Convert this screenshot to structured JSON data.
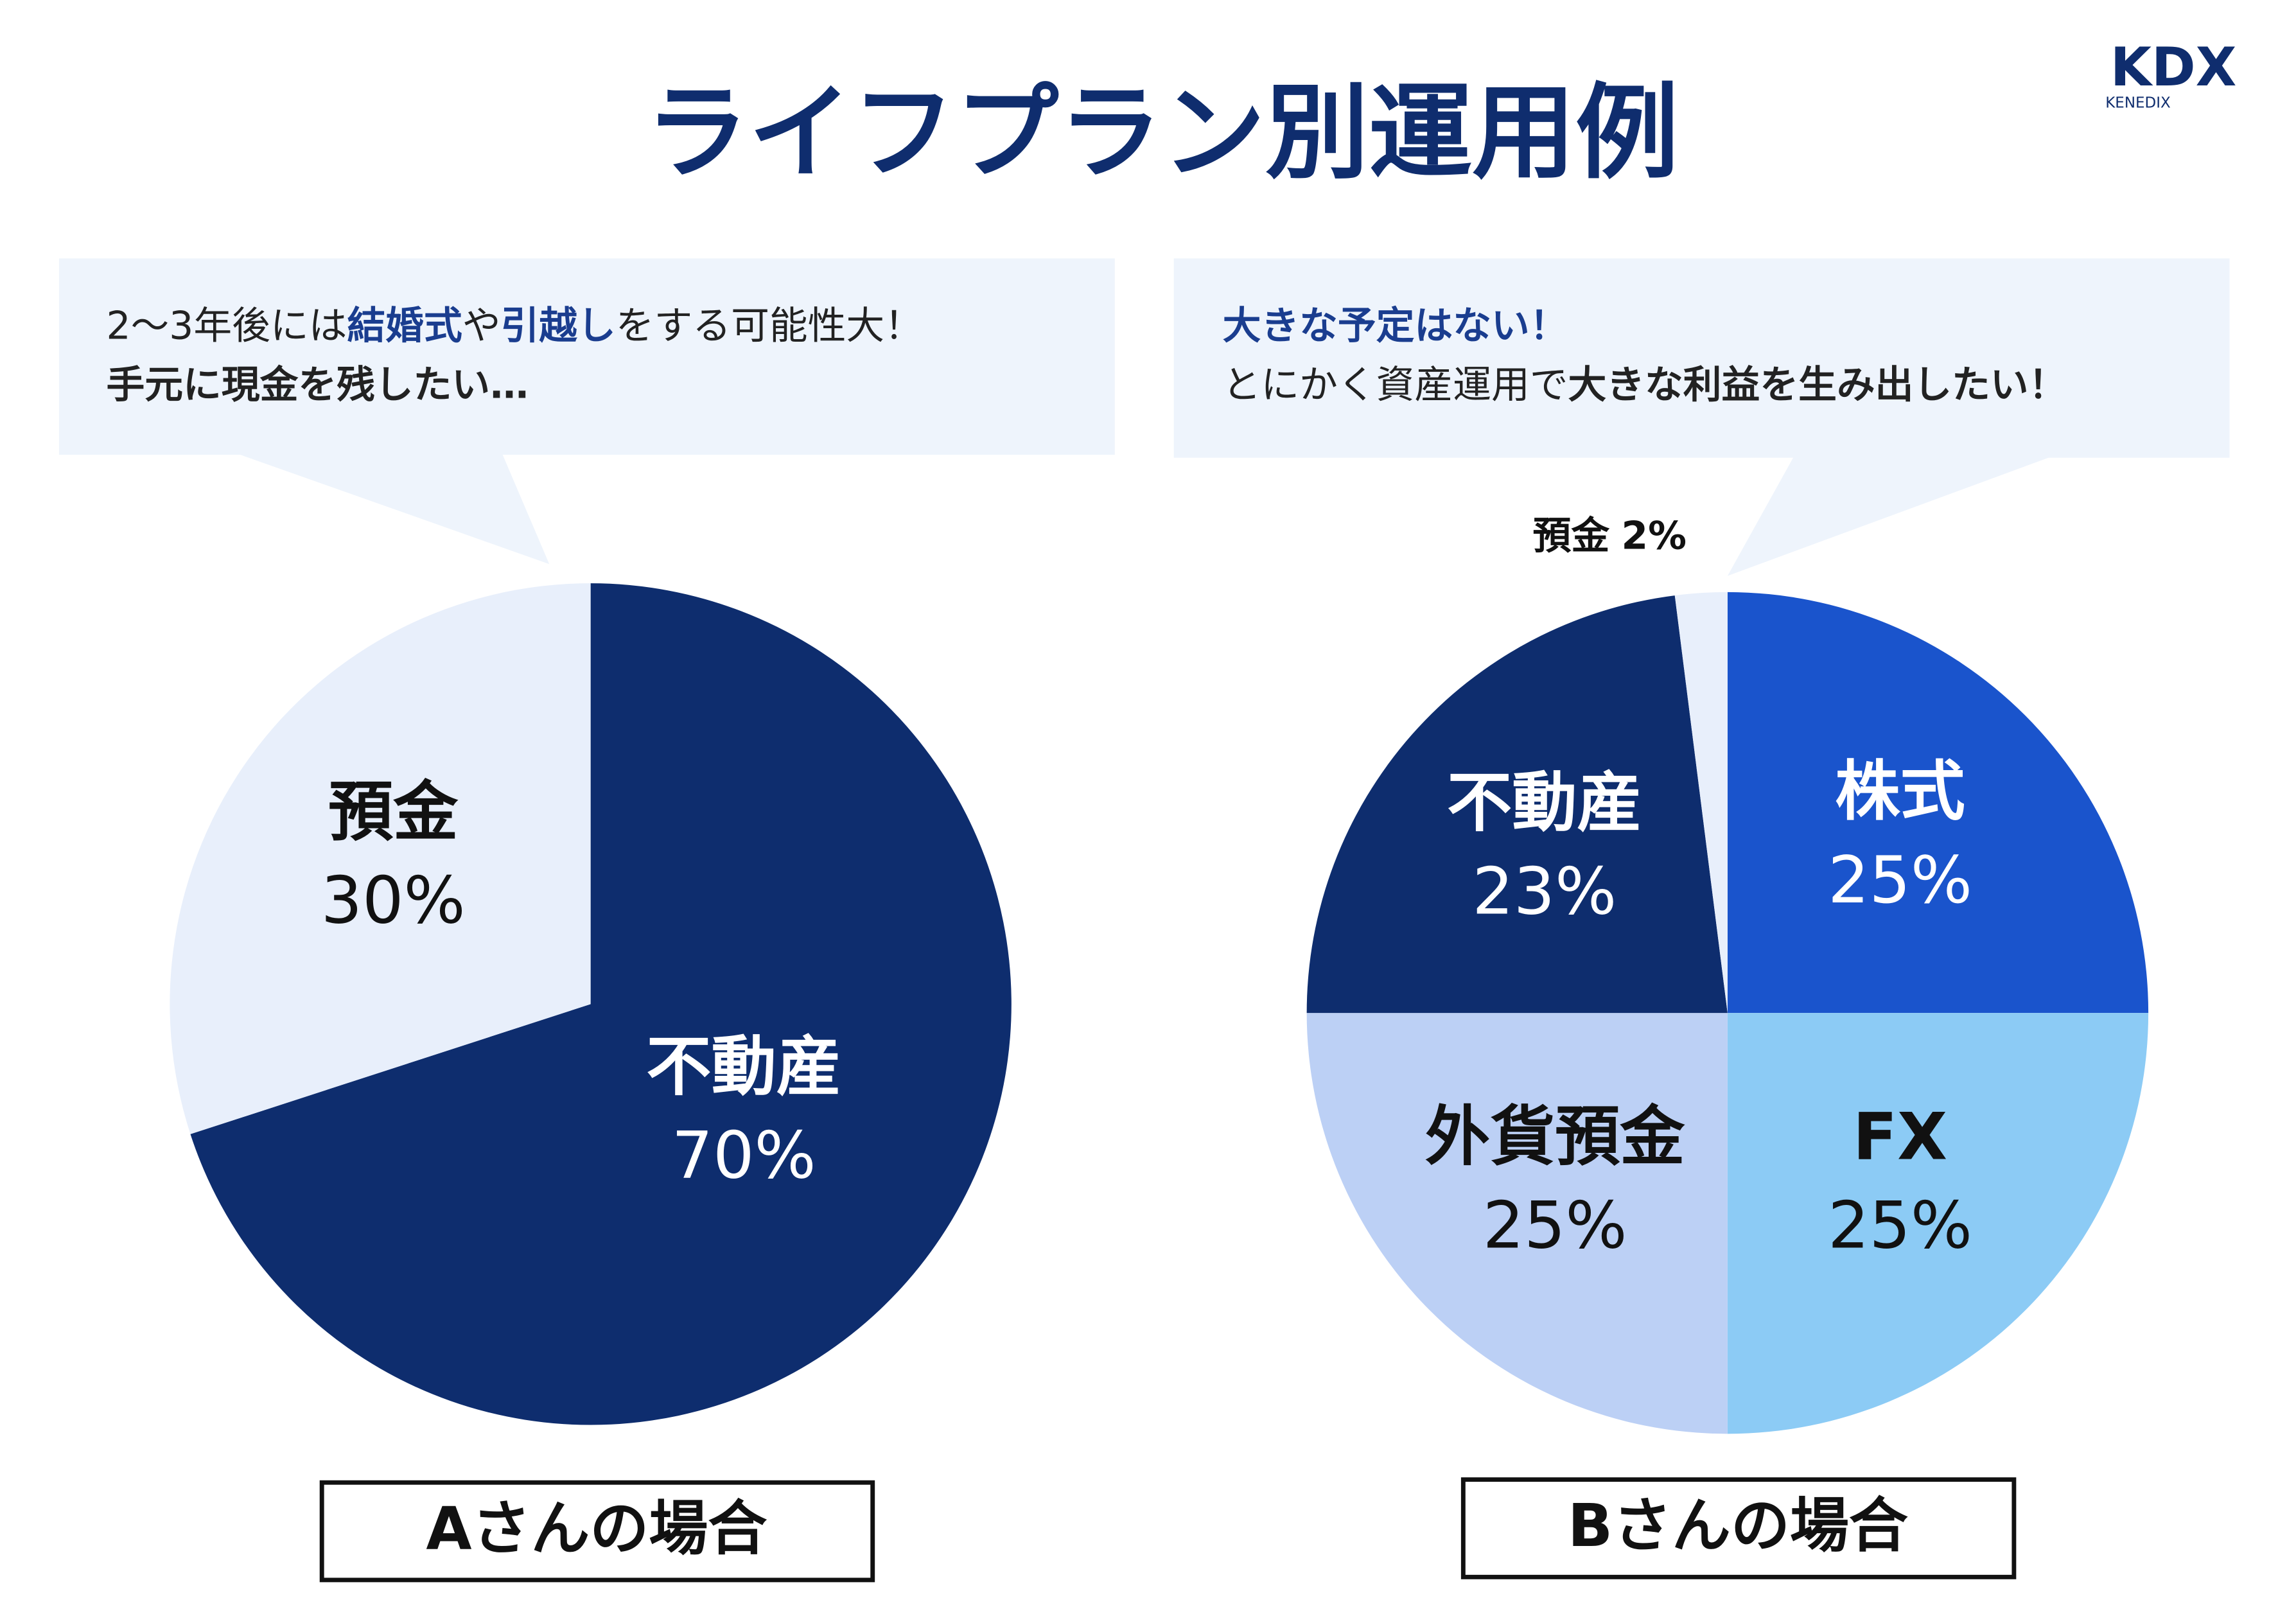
{
  "title": "ライフプラン別運用例",
  "logo": {
    "main": "KDX",
    "sub": "KENEDIX"
  },
  "chart_data": [
    {
      "type": "pie",
      "caption": "Aさんの場合",
      "bubble": [
        [
          {
            "text": "2〜3年後には",
            "style": "normal"
          },
          {
            "text": "結婚式",
            "style": "accent"
          },
          {
            "text": "や",
            "style": "normal"
          },
          {
            "text": "引越し",
            "style": "accent"
          },
          {
            "text": "をする可能性大！",
            "style": "normal"
          }
        ],
        [
          {
            "text": "手元に現金を残したい…",
            "style": "bold"
          }
        ]
      ],
      "categories": [
        "不動産",
        "預金"
      ],
      "values": [
        70,
        30
      ],
      "value_labels": [
        "70%",
        "30%"
      ],
      "colors": [
        "#0e2d6e",
        "#e8effb"
      ]
    },
    {
      "type": "pie",
      "caption": "Bさんの場合",
      "bubble": [
        [
          {
            "text": "大きな予定はない！",
            "style": "accent"
          }
        ],
        [
          {
            "text": "とにかく資産運用で",
            "style": "normal"
          },
          {
            "text": "大きな利益を生み出したい！",
            "style": "bold"
          }
        ]
      ],
      "categories": [
        "株式",
        "FX",
        "外貨預金",
        "不動産",
        "預金"
      ],
      "values": [
        25,
        25,
        25,
        23,
        2
      ],
      "value_labels": [
        "25%",
        "25%",
        "25%",
        "23%",
        "2%"
      ],
      "colors": [
        "#1a54cc",
        "#8ccbf5",
        "#bcd0f5",
        "#0e2d6e",
        "#e8effb"
      ]
    }
  ]
}
